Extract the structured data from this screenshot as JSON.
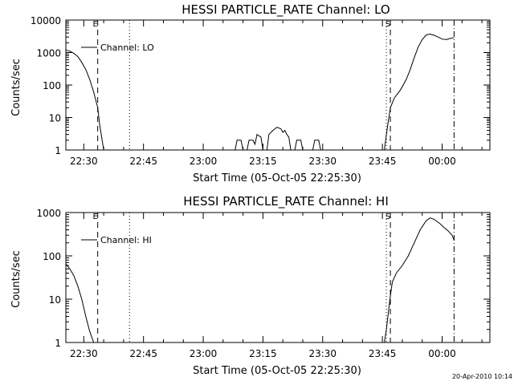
{
  "footer": {
    "timestamp": "20-Apr-2010 10:14"
  },
  "chart_data": [
    {
      "type": "line",
      "title": "HESSI PARTICLE_RATE Channel: LO",
      "xlabel": "Start Time (05-Oct-05 22:25:30)",
      "ylabel": "Counts/sec",
      "y_scale": "log",
      "xlim": [
        "22:25:30",
        "00:12:00"
      ],
      "ylim": [
        1,
        10000
      ],
      "x_ticks": [
        "22:30",
        "22:45",
        "23:00",
        "23:15",
        "23:30",
        "23:45",
        "00:00"
      ],
      "y_ticks": [
        "1",
        "10",
        "100",
        "1000",
        "10000"
      ],
      "legend": {
        "label": "Channel: LO",
        "position": "top-left"
      },
      "markers": [
        {
          "time": "22:33:30",
          "style": "dashed",
          "label": "E"
        },
        {
          "time": "22:41:30",
          "style": "dotted"
        },
        {
          "time": "23:46:00",
          "style": "dotted"
        },
        {
          "time": "23:47:00",
          "style": "dashed",
          "label": "S"
        },
        {
          "time": "00:03:00",
          "style": "dash-dot"
        }
      ],
      "series": [
        {
          "segments": [
            [
              [
                "22:25:30",
                1200
              ],
              [
                "22:26:30",
                1100
              ],
              [
                "22:27:30",
                950
              ],
              [
                "22:28:30",
                750
              ],
              [
                "22:29:30",
                500
              ],
              [
                "22:30:30",
                300
              ],
              [
                "22:31:30",
                150
              ],
              [
                "22:32:30",
                60
              ],
              [
                "22:33:30",
                20
              ],
              [
                "22:34:00",
                6
              ],
              [
                "22:34:30",
                2.5
              ],
              [
                "22:35:00",
                1
              ]
            ],
            [
              [
                "23:08:00",
                1
              ],
              [
                "23:08:30",
                2
              ],
              [
                "23:09:30",
                2
              ],
              [
                "23:10:00",
                1
              ]
            ],
            [
              [
                "23:11:00",
                1
              ],
              [
                "23:11:30",
                2
              ],
              [
                "23:12:30",
                2
              ],
              [
                "23:13:00",
                1.5
              ],
              [
                "23:13:30",
                3
              ],
              [
                "23:14:30",
                2.5
              ],
              [
                "23:15:00",
                1
              ]
            ],
            [
              [
                "23:16:00",
                1
              ],
              [
                "23:16:30",
                3
              ],
              [
                "23:17:30",
                4
              ],
              [
                "23:18:30",
                5
              ],
              [
                "23:19:30",
                4.5
              ],
              [
                "23:20:00",
                3.5
              ],
              [
                "23:20:30",
                4
              ],
              [
                "23:21:00",
                3
              ],
              [
                "23:21:30",
                2.5
              ],
              [
                "23:22:00",
                1
              ]
            ],
            [
              [
                "23:23:00",
                1
              ],
              [
                "23:23:30",
                2
              ],
              [
                "23:24:30",
                2
              ],
              [
                "23:25:00",
                1
              ]
            ],
            [
              [
                "23:27:30",
                1
              ],
              [
                "23:28:00",
                2
              ],
              [
                "23:29:00",
                2
              ],
              [
                "23:29:30",
                1
              ]
            ],
            [
              [
                "23:45:30",
                1
              ],
              [
                "23:46:00",
                3
              ],
              [
                "23:46:30",
                8
              ],
              [
                "23:47:00",
                20
              ],
              [
                "23:48:00",
                40
              ],
              [
                "23:49:30",
                70
              ],
              [
                "23:51:00",
                150
              ],
              [
                "23:52:00",
                300
              ],
              [
                "23:53:00",
                700
              ],
              [
                "23:54:00",
                1500
              ],
              [
                "23:55:00",
                2500
              ],
              [
                "23:56:00",
                3500
              ],
              [
                "23:57:00",
                3700
              ],
              [
                "23:58:00",
                3400
              ],
              [
                "23:59:00",
                3000
              ],
              [
                "00:00:00",
                2600
              ],
              [
                "00:01:00",
                2500
              ],
              [
                "00:02:00",
                2700
              ],
              [
                "00:03:00",
                2900
              ]
            ]
          ]
        }
      ]
    },
    {
      "type": "line",
      "title": "HESSI PARTICLE_RATE Channel: HI",
      "xlabel": "Start Time (05-Oct-05 22:25:30)",
      "ylabel": "Counts/sec",
      "y_scale": "log",
      "xlim": [
        "22:25:30",
        "00:12:00"
      ],
      "ylim": [
        1,
        1000
      ],
      "x_ticks": [
        "22:30",
        "22:45",
        "23:00",
        "23:15",
        "23:30",
        "23:45",
        "00:00"
      ],
      "y_ticks": [
        "1",
        "10",
        "100",
        "1000"
      ],
      "legend": {
        "label": "Channel: HI",
        "position": "top-left"
      },
      "markers": [
        {
          "time": "22:33:30",
          "style": "dashed",
          "label": "E"
        },
        {
          "time": "22:41:30",
          "style": "dotted"
        },
        {
          "time": "23:46:00",
          "style": "dotted"
        },
        {
          "time": "23:47:00",
          "style": "dashed",
          "label": "S"
        },
        {
          "time": "00:03:00",
          "style": "dash-dot"
        }
      ],
      "series": [
        {
          "segments": [
            [
              [
                "22:25:30",
                65
              ],
              [
                "22:26:30",
                50
              ],
              [
                "22:27:30",
                35
              ],
              [
                "22:28:30",
                20
              ],
              [
                "22:29:30",
                10
              ],
              [
                "22:30:30",
                4
              ],
              [
                "22:31:30",
                1.8
              ],
              [
                "22:32:30",
                1
              ]
            ],
            [
              [
                "23:45:30",
                1
              ],
              [
                "23:46:00",
                2
              ],
              [
                "23:46:30",
                5
              ],
              [
                "23:47:00",
                12
              ],
              [
                "23:47:30",
                25
              ],
              [
                "23:48:30",
                40
              ],
              [
                "23:50:00",
                60
              ],
              [
                "23:51:30",
                100
              ],
              [
                "23:53:00",
                200
              ],
              [
                "23:54:30",
                400
              ],
              [
                "23:56:00",
                650
              ],
              [
                "23:57:00",
                750
              ],
              [
                "23:58:00",
                700
              ],
              [
                "23:59:30",
                550
              ],
              [
                "00:00:30",
                450
              ],
              [
                "00:01:30",
                380
              ],
              [
                "00:02:30",
                300
              ],
              [
                "00:03:00",
                230
              ]
            ]
          ]
        }
      ]
    }
  ]
}
